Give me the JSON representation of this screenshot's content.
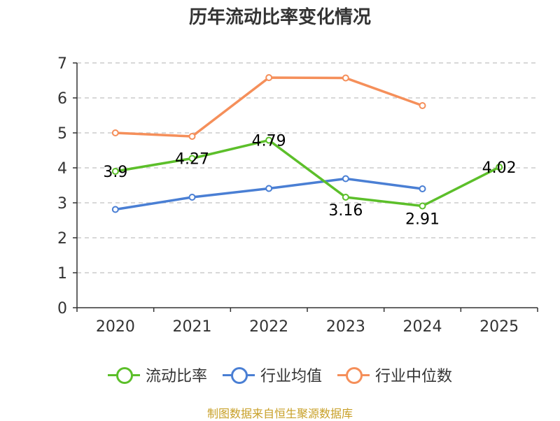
{
  "chart_data": {
    "type": "line",
    "title": "历年流动比率变化情况",
    "categories": [
      "2020",
      "2021",
      "2022",
      "2023",
      "2024",
      "2025"
    ],
    "ylim": [
      0,
      7
    ],
    "yticks": [
      0,
      1,
      2,
      3,
      4,
      5,
      6,
      7
    ],
    "grid": true,
    "legend_position": "bottom",
    "series": [
      {
        "name": "流动比率",
        "color": "#5cbf2a",
        "values": [
          3.9,
          4.27,
          4.79,
          3.16,
          2.91,
          4.02
        ],
        "labels": [
          "3.9",
          "4.27",
          "4.79",
          "3.16",
          "2.91",
          "4.02"
        ]
      },
      {
        "name": "行业均值",
        "color": "#4a7fd4",
        "values": [
          2.81,
          3.16,
          3.41,
          3.69,
          3.4,
          null
        ]
      },
      {
        "name": "行业中位数",
        "color": "#f58f5a",
        "values": [
          5.0,
          4.9,
          6.58,
          6.57,
          5.78,
          null
        ]
      }
    ]
  },
  "source": "制图数据来自恒生聚源数据库"
}
